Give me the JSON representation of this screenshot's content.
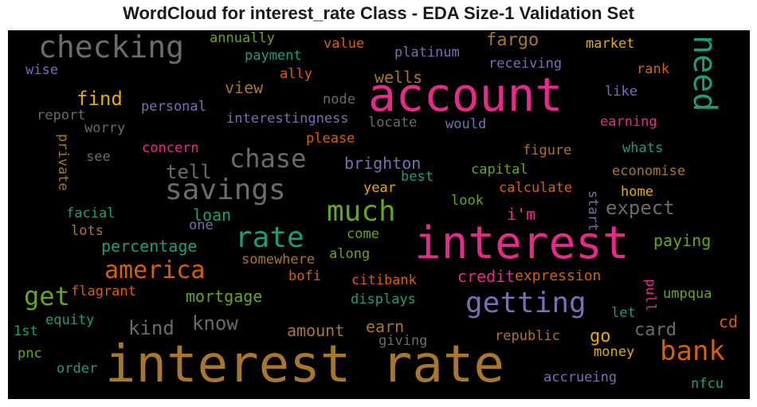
{
  "chart_data": {
    "type": "wordcloud",
    "title": "WordCloud for interest_rate Class - EDA Size-1 Validation Set",
    "background": "#000000",
    "words": [
      {
        "text": "interest rate",
        "color": "#a8772a"
      },
      {
        "text": "interest",
        "color": "#e7298a"
      },
      {
        "text": "account",
        "color": "#e7298a"
      },
      {
        "text": "checking",
        "color": "#6b6b6b"
      },
      {
        "text": "need",
        "color": "#1b9e77"
      },
      {
        "text": "savings",
        "color": "#6b6b6b"
      },
      {
        "text": "chase",
        "color": "#6b6b6b"
      },
      {
        "text": "much",
        "color": "#66a61e"
      },
      {
        "text": "rate",
        "color": "#1b9e77"
      },
      {
        "text": "getting",
        "color": "#7570b3"
      },
      {
        "text": "bank",
        "color": "#d95f02"
      },
      {
        "text": "america",
        "color": "#d95f02"
      },
      {
        "text": "get",
        "color": "#66a61e"
      },
      {
        "text": "find",
        "color": "#e6ab02"
      },
      {
        "text": "tell",
        "color": "#6b6b6b"
      },
      {
        "text": "expect",
        "color": "#6b6b6b"
      },
      {
        "text": "know",
        "color": "#6b6b6b"
      },
      {
        "text": "kind",
        "color": "#6b6b6b"
      },
      {
        "text": "wells",
        "color": "#a8772a"
      },
      {
        "text": "fargo",
        "color": "#a8772a"
      },
      {
        "text": "view",
        "color": "#a8772a"
      },
      {
        "text": "loan",
        "color": "#1b9e77"
      },
      {
        "text": "percentage",
        "color": "#1b9e77"
      },
      {
        "text": "paying",
        "color": "#66a61e"
      },
      {
        "text": "mortgage",
        "color": "#66a61e"
      },
      {
        "text": "amount",
        "color": "#a8772a"
      },
      {
        "text": "earn",
        "color": "#a8772a"
      },
      {
        "text": "credit",
        "color": "#e7298a"
      },
      {
        "text": "expression",
        "color": "#d95f02"
      },
      {
        "text": "card",
        "color": "#6b6b6b"
      },
      {
        "text": "brighton",
        "color": "#7570b3"
      },
      {
        "text": "i'm",
        "color": "#e7298a"
      },
      {
        "text": "go",
        "color": "#e6ab02"
      },
      {
        "text": "cd",
        "color": "#d95f02"
      },
      {
        "text": "annually",
        "color": "#66a61e"
      },
      {
        "text": "value",
        "color": "#d95f02"
      },
      {
        "text": "platinum",
        "color": "#7570b3"
      },
      {
        "text": "market",
        "color": "#e6ab02"
      },
      {
        "text": "payment",
        "color": "#1b9e77"
      },
      {
        "text": "receiving",
        "color": "#7570b3"
      },
      {
        "text": "rank",
        "color": "#d95f02"
      },
      {
        "text": "wise",
        "color": "#7570b3"
      },
      {
        "text": "ally",
        "color": "#d95f02"
      },
      {
        "text": "like",
        "color": "#7570b3"
      },
      {
        "text": "node",
        "color": "#6b6b6b"
      },
      {
        "text": "personal",
        "color": "#7570b3"
      },
      {
        "text": "report",
        "color": "#6b6b6b"
      },
      {
        "text": "interestingness",
        "color": "#7570b3"
      },
      {
        "text": "locate",
        "color": "#6b6b6b"
      },
      {
        "text": "would",
        "color": "#7570b3"
      },
      {
        "text": "earning",
        "color": "#e7298a"
      },
      {
        "text": "worry",
        "color": "#6b6b6b"
      },
      {
        "text": "please",
        "color": "#d95f02"
      },
      {
        "text": "concern",
        "color": "#e7298a"
      },
      {
        "text": "figure",
        "color": "#a8772a"
      },
      {
        "text": "whats",
        "color": "#1b9e77"
      },
      {
        "text": "see",
        "color": "#6b6b6b"
      },
      {
        "text": "private",
        "color": "#a8772a"
      },
      {
        "text": "best",
        "color": "#1b9e77"
      },
      {
        "text": "capital",
        "color": "#66a61e"
      },
      {
        "text": "economise",
        "color": "#a8772a"
      },
      {
        "text": "year",
        "color": "#e6ab02"
      },
      {
        "text": "calculate",
        "color": "#d95f02"
      },
      {
        "text": "home",
        "color": "#e6ab02"
      },
      {
        "text": "start",
        "color": "#7570b3"
      },
      {
        "text": "look",
        "color": "#66a61e"
      },
      {
        "text": "facial",
        "color": "#1b9e77"
      },
      {
        "text": "one",
        "color": "#7570b3"
      },
      {
        "text": "lots",
        "color": "#a8772a"
      },
      {
        "text": "come",
        "color": "#66a61e"
      },
      {
        "text": "somewhere",
        "color": "#a8772a"
      },
      {
        "text": "along",
        "color": "#66a61e"
      },
      {
        "text": "bofi",
        "color": "#d95f02"
      },
      {
        "text": "citibank",
        "color": "#d95f02"
      },
      {
        "text": "pull",
        "color": "#e7298a"
      },
      {
        "text": "flagrant",
        "color": "#d95f02"
      },
      {
        "text": "displays",
        "color": "#1b9e77"
      },
      {
        "text": "umpqua",
        "color": "#66a61e"
      },
      {
        "text": "let",
        "color": "#1b9e77"
      },
      {
        "text": "equity",
        "color": "#1b9e77"
      },
      {
        "text": "1st",
        "color": "#1b9e77"
      },
      {
        "text": "republic",
        "color": "#a8772a"
      },
      {
        "text": "giving",
        "color": "#6b6b6b"
      },
      {
        "text": "money",
        "color": "#e6ab02"
      },
      {
        "text": "pnc",
        "color": "#66a61e"
      },
      {
        "text": "order",
        "color": "#1b9e77"
      },
      {
        "text": "accrueing",
        "color": "#7570b3"
      },
      {
        "text": "nfcu",
        "color": "#1b9e77"
      }
    ]
  }
}
